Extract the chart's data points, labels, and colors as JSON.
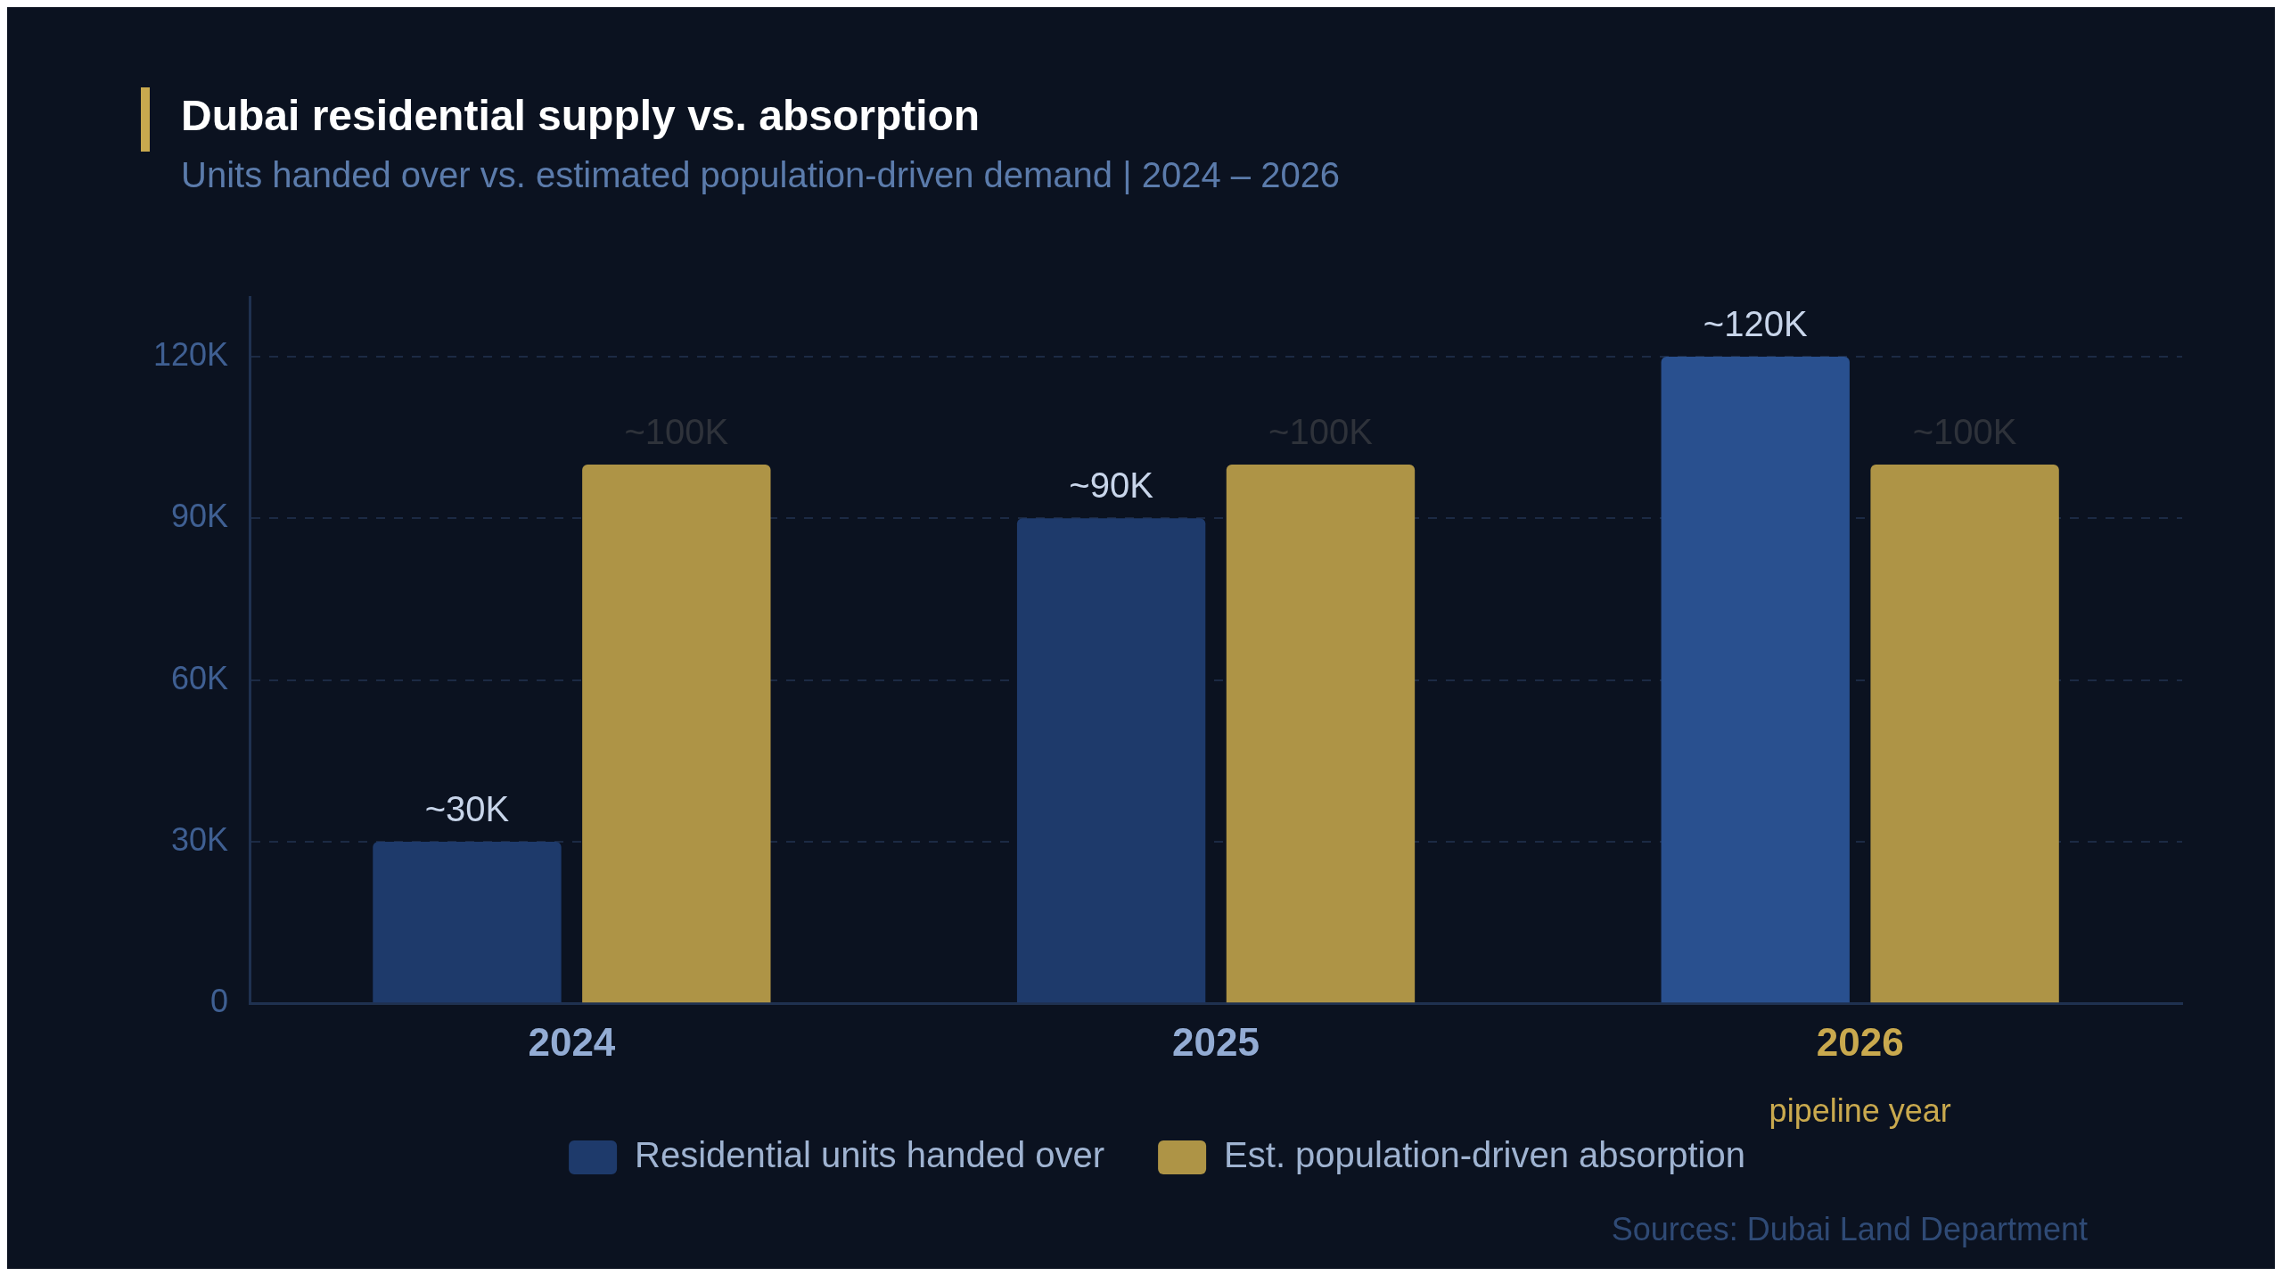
{
  "chart_data": {
    "type": "bar",
    "title": "Dubai residential supply vs. absorption",
    "subtitle": "Units handed over vs. estimated population-driven demand | 2024 – 2026",
    "categories": [
      "2024",
      "2025",
      "2026"
    ],
    "series": [
      {
        "name": "Residential units handed over",
        "color": "#1e3a6b",
        "colors": [
          "#1e3a6b",
          "#1e3a6b",
          "#29508f"
        ],
        "values": [
          30000,
          90000,
          120000
        ],
        "value_labels": [
          "~30K",
          "~90K",
          "~120K"
        ]
      },
      {
        "name": "Est. population-driven absorption",
        "color": "#ae9446",
        "values": [
          100000,
          100000,
          100000
        ],
        "value_labels": [
          "~100K",
          "~100K",
          "~100K"
        ]
      }
    ],
    "ylim": [
      0,
      131000
    ],
    "yticks": [
      {
        "value": 0,
        "label": "0"
      },
      {
        "value": 30000,
        "label": "30K"
      },
      {
        "value": 60000,
        "label": "60K"
      },
      {
        "value": 90000,
        "label": "90K"
      },
      {
        "value": 120000,
        "label": "120K"
      }
    ],
    "grid": "y",
    "legend": "bottom",
    "annotations": [
      "pipeline year",
      "Sources: Dubai Land Department"
    ]
  }
}
